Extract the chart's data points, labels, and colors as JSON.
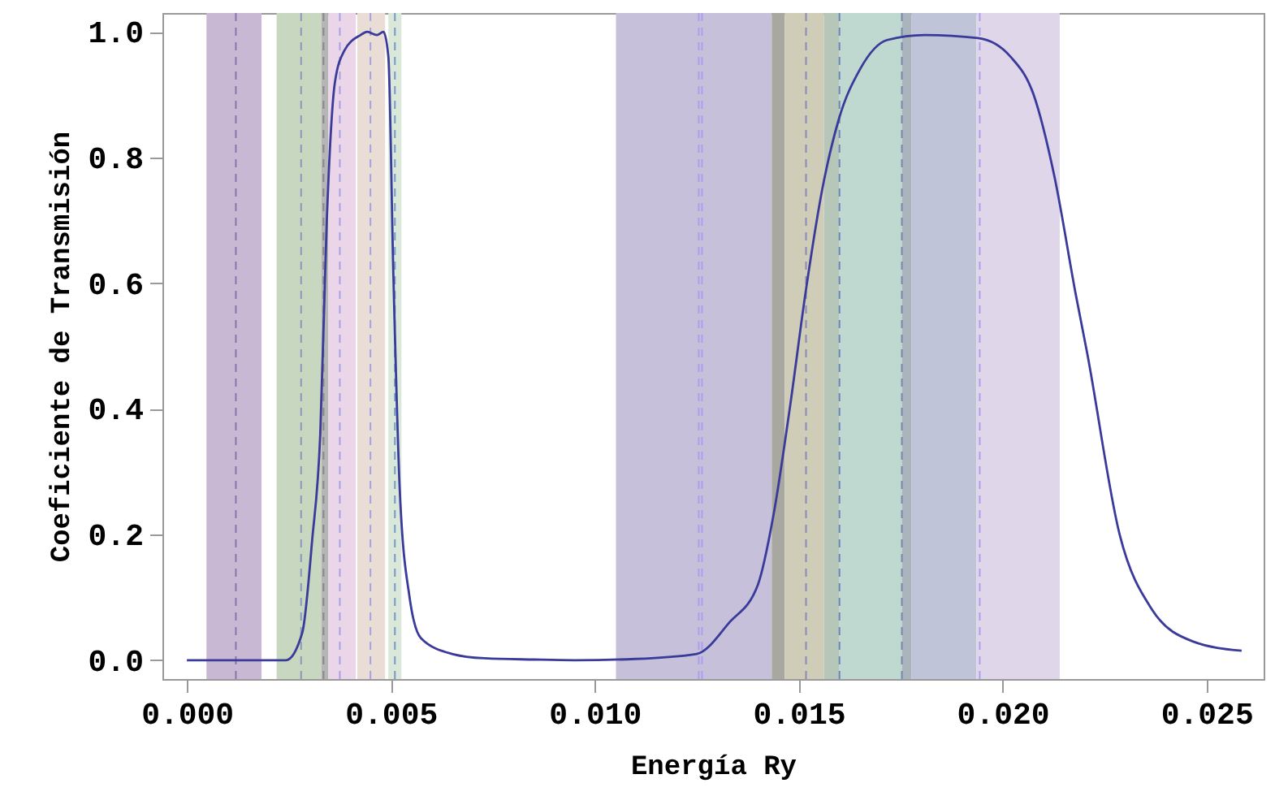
{
  "chart_data": {
    "type": "line",
    "xlabel": "Energía Ry",
    "ylabel": "Coeficiente de Transmisión",
    "x": [
      0,
      0.002,
      0.00243,
      0.00283,
      0.00307,
      0.00327,
      0.00343,
      0.00363,
      0.00386,
      0.00426,
      0.00442,
      0.00466,
      0.00482,
      0.00494,
      0.00506,
      0.00522,
      0.00546,
      0.00574,
      0.0065,
      0.0073,
      0.0085,
      0.0095,
      0.011,
      0.0125,
      0.0133,
      0.014,
      0.01438,
      0.01478,
      0.01518,
      0.01558,
      0.01598,
      0.0165,
      0.01717,
      0.0181,
      0.0194,
      0.0202,
      0.02076,
      0.02127,
      0.0218,
      0.02207,
      0.02287,
      0.02367,
      0.02466,
      0.02586
    ],
    "series": [
      {
        "color": "#3a3a9a",
        "values": [
          0,
          0,
          0,
          0.044,
          0.19,
          0.36,
          0.7,
          0.92,
          0.97,
          0.995,
          1.0,
          0.995,
          1.0,
          0.96,
          0.62,
          0.27,
          0.1,
          0.035,
          0.01,
          0.003,
          0.001,
          0,
          0.002,
          0.01,
          0.06,
          0.12,
          0.23,
          0.4,
          0.59,
          0.75,
          0.86,
          0.94,
          0.987,
          0.995,
          0.99,
          0.96,
          0.9,
          0.77,
          0.58,
          0.49,
          0.2,
          0.08,
          0.03,
          0.015
        ]
      }
    ],
    "xlim": [
      -0.0006,
      0.0264
    ],
    "ylim": [
      -0.03,
      1.03
    ],
    "xticks": [
      {
        "value": 0,
        "label": "0.000"
      },
      {
        "value": 0.005,
        "label": "0.005"
      },
      {
        "value": 0.01,
        "label": "0.010"
      },
      {
        "value": 0.015,
        "label": "0.015"
      },
      {
        "value": 0.02,
        "label": "0.020"
      },
      {
        "value": 0.025,
        "label": "0.025"
      }
    ],
    "yticks": [
      {
        "value": 0,
        "label": "0.0"
      },
      {
        "value": 0.2,
        "label": "0.2"
      },
      {
        "value": 0.4,
        "label": "0.4"
      },
      {
        "value": 0.6,
        "label": "0.6"
      },
      {
        "value": 0.8,
        "label": "0.8"
      },
      {
        "value": 1,
        "label": "1.0"
      }
    ],
    "grid": false,
    "marker": "none",
    "line_style": "solid",
    "bands": [
      {
        "axis": "x",
        "from": 0.00048,
        "to": 0.00183,
        "color": "#c8b8d3"
      },
      {
        "axis": "x",
        "from": 0.0022,
        "to": 0.0033,
        "color": "#c7d7c0"
      },
      {
        "axis": "x",
        "from": 0.0033,
        "to": 0.00347,
        "color": "#b5b5b5"
      },
      {
        "axis": "x",
        "from": 0.00347,
        "to": 0.00414,
        "color": "#ead6e8"
      },
      {
        "axis": "x",
        "from": 0.00418,
        "to": 0.00486,
        "color": "#e9ddd5"
      },
      {
        "axis": "x",
        "from": 0.00494,
        "to": 0.00526,
        "color": "#d9e8d9"
      },
      {
        "axis": "x",
        "from": 0.01052,
        "to": 0.01434,
        "color": "#c6c0da"
      },
      {
        "axis": "x",
        "from": 0.01434,
        "to": 0.01466,
        "color": "#a8a8a0"
      },
      {
        "axis": "x",
        "from": 0.01466,
        "to": 0.01562,
        "color": "#cfcdb8"
      },
      {
        "axis": "x",
        "from": 0.01562,
        "to": 0.016,
        "color": "#b6c6b8"
      },
      {
        "axis": "x",
        "from": 0.016,
        "to": 0.01753,
        "color": "#c0d9d0"
      },
      {
        "axis": "x",
        "from": 0.01753,
        "to": 0.01777,
        "color": "#aab4bc"
      },
      {
        "axis": "x",
        "from": 0.01777,
        "to": 0.01936,
        "color": "#c0c4d9"
      },
      {
        "axis": "x",
        "from": 0.01936,
        "to": 0.0214,
        "color": "#dfd6ea"
      }
    ],
    "ref_lines": [
      {
        "axis": "x",
        "value": 0.0012,
        "color": "#8877aa",
        "line_style": "dashed"
      },
      {
        "axis": "x",
        "value": 0.0028,
        "color": "#8899bb",
        "line_style": "dashed"
      },
      {
        "axis": "x",
        "value": 0.00335,
        "color": "#888888",
        "line_style": "dashed"
      },
      {
        "axis": "x",
        "value": 0.00375,
        "color": "#a99ee8",
        "line_style": "dashed"
      },
      {
        "axis": "x",
        "value": 0.0045,
        "color": "#a99ee8",
        "line_style": "dashed"
      },
      {
        "axis": "x",
        "value": 0.0051,
        "color": "#7799cc",
        "line_style": "dashed"
      },
      {
        "axis": "x",
        "value": 0.01255,
        "color": "#a9a0f0",
        "line_style": "dashed"
      },
      {
        "axis": "x",
        "value": 0.01263,
        "color": "#a9a0f0",
        "line_style": "dashed"
      },
      {
        "axis": "x",
        "value": 0.01518,
        "color": "#8888bb",
        "line_style": "dashed"
      },
      {
        "axis": "x",
        "value": 0.016,
        "color": "#6688bb",
        "line_style": "dashed"
      },
      {
        "axis": "x",
        "value": 0.01753,
        "color": "#7788aa",
        "line_style": "dashed"
      },
      {
        "axis": "x",
        "value": 0.01944,
        "color": "#a9a0f0",
        "line_style": "dashed"
      }
    ]
  }
}
